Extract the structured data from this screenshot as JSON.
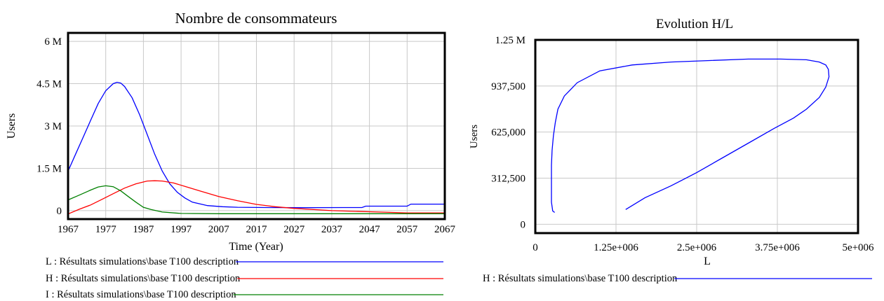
{
  "chart_data": [
    {
      "type": "line",
      "title": "Nombre de consommateurs",
      "xlabel": "Time (Year)",
      "ylabel": "Users",
      "xlim": [
        1967,
        2067
      ],
      "ylim": [
        -300000,
        6300000
      ],
      "x_ticks": [
        1967,
        1977,
        1987,
        1997,
        2007,
        2017,
        2027,
        2037,
        2047,
        2057,
        2067
      ],
      "x_tick_labels": [
        "1967",
        "1977",
        "1987",
        "1997",
        "2007",
        "2017",
        "2027",
        "2037",
        "2047",
        "2057",
        "2067"
      ],
      "y_ticks": [
        0,
        1500000,
        3000000,
        4500000,
        6000000
      ],
      "y_tick_labels": [
        "0",
        "1.5 M",
        "3 M",
        "4.5 M",
        "6 M"
      ],
      "grid": true,
      "legend": "bottom",
      "series": [
        {
          "name": "L : Résultats simulations\\base T100 description",
          "color": "#0000ff",
          "x": [
            1967,
            1969,
            1971,
            1973,
            1975,
            1977,
            1979,
            1980,
            1981,
            1982,
            1984,
            1986,
            1988,
            1990,
            1992,
            1994,
            1996,
            1998,
            2000,
            2004,
            2008,
            2012,
            2020,
            2030,
            2040,
            2045,
            2046,
            2050,
            2055,
            2057,
            2058,
            2067
          ],
          "y": [
            1400000,
            2000000,
            2600000,
            3200000,
            3800000,
            4250000,
            4500000,
            4550000,
            4520000,
            4400000,
            4000000,
            3400000,
            2700000,
            2000000,
            1400000,
            950000,
            650000,
            450000,
            300000,
            180000,
            140000,
            120000,
            110000,
            105000,
            110000,
            110000,
            160000,
            160000,
            160000,
            160000,
            230000,
            230000
          ]
        },
        {
          "name": "H : Résultats simulations\\base T100 description",
          "color": "#ff0000",
          "x": [
            1967,
            1970,
            1973,
            1976,
            1979,
            1982,
            1985,
            1988,
            1990,
            1992,
            1995,
            1998,
            2002,
            2007,
            2012,
            2017,
            2022,
            2027,
            2037,
            2047,
            2057,
            2067
          ],
          "y": [
            -120000,
            50000,
            200000,
            400000,
            600000,
            800000,
            950000,
            1050000,
            1060000,
            1050000,
            980000,
            860000,
            700000,
            500000,
            350000,
            220000,
            140000,
            80000,
            0,
            -40000,
            -80000,
            -80000
          ]
        },
        {
          "name": "I : Résultats simulations\\base T100 description",
          "color": "#008000",
          "x": [
            1967,
            1970,
            1973,
            1975,
            1977,
            1979,
            1981,
            1983,
            1985,
            1987,
            1989,
            1992,
            1997,
            2007,
            2017,
            2067
          ],
          "y": [
            380000,
            550000,
            730000,
            840000,
            880000,
            850000,
            700000,
            500000,
            300000,
            120000,
            40000,
            -50000,
            -100000,
            -110000,
            -110000,
            -110000
          ]
        }
      ]
    },
    {
      "type": "line",
      "title": "Evolution H/L",
      "xlabel": "L",
      "ylabel": "Users",
      "xlim": [
        0,
        5000000
      ],
      "ylim": [
        -60000,
        1250000
      ],
      "x_ticks": [
        0,
        1250000,
        2500000,
        3750000,
        5000000
      ],
      "x_tick_labels": [
        "0",
        "1.25e+006",
        "2.5e+006",
        "3.75e+006",
        "5e+006"
      ],
      "y_ticks": [
        0,
        312500,
        625000,
        937500,
        1250000
      ],
      "y_tick_labels": [
        "0",
        "312,500",
        "625,000",
        "937,500",
        "1.25 M"
      ],
      "grid": true,
      "legend": "bottom",
      "series": [
        {
          "name": "H : Résultats simulations\\base T100 description",
          "color": "#0000ff",
          "x": [
            1400000,
            1700000,
            2100000,
            2500000,
            2900000,
            3300000,
            3700000,
            4000000,
            4200000,
            4400000,
            4500000,
            4550000,
            4540000,
            4500000,
            4400000,
            4200000,
            3800000,
            3300000,
            2700000,
            2100000,
            1500000,
            1000000,
            650000,
            450000,
            350000,
            310000,
            280000,
            260000,
            250000,
            250000,
            270000,
            300000
          ],
          "y": [
            100000,
            180000,
            260000,
            350000,
            450000,
            550000,
            650000,
            720000,
            780000,
            860000,
            930000,
            1000000,
            1050000,
            1080000,
            1100000,
            1115000,
            1120000,
            1120000,
            1110000,
            1100000,
            1080000,
            1040000,
            960000,
            870000,
            780000,
            690000,
            600000,
            500000,
            400000,
            150000,
            90000,
            80000
          ]
        }
      ]
    }
  ]
}
